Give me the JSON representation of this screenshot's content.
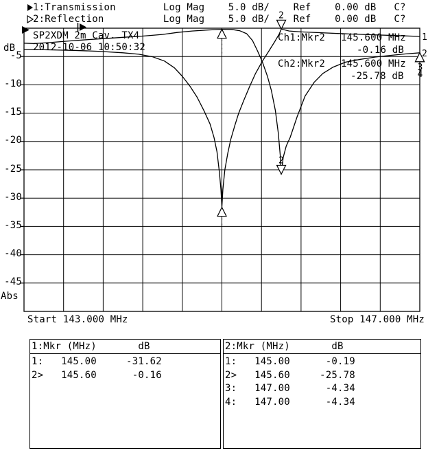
{
  "colors": {
    "foreground": "#000000",
    "background": "#ffffff"
  },
  "header": {
    "ch1_arrow": "filled-right-triangle",
    "ch2_arrow": "hollow-right-triangle",
    "ch1_line": "1:Transmission        Log Mag    5.0 dB/    Ref    0.00 dB   C?",
    "ch2_line": "2:Reflection          Log Mag    5.0 dB/    Ref    0.00 dB   C?"
  },
  "plot": {
    "title": "SP2XDM 2m Cav. TX4",
    "timestamp": "2012-10-06 10:50:32",
    "y_top_label": "dB",
    "y_bottom_label": "Abs",
    "start_label": "Start 143.000 MHz",
    "stop_label": "Stop 147.000 MHz",
    "readouts": {
      "ch1_label": "Ch1:Mkr2",
      "ch1_freq": "145.600 MHz",
      "ch1_value": "-0.16 dB",
      "ch2_label": "Ch2:Mkr2",
      "ch2_freq": "145.600 MHz",
      "ch2_value": "-25.78 dB"
    }
  },
  "chart_data": {
    "type": "line",
    "title": "SP2XDM 2m Cav. TX4",
    "timestamp": "2012-10-06 10:50:32",
    "x_axis": {
      "min": 143.0,
      "max": 147.0,
      "unit": "MHz",
      "divisions": 10,
      "start_label": "Start 143.000 MHz",
      "stop_label": "Stop 147.000 MHz"
    },
    "y_axis": {
      "min": -50,
      "max": 0,
      "unit": "dB",
      "divisions": 10,
      "scale_per_div": 5.0,
      "ref_level": 0.0,
      "ticks": [
        -5,
        -10,
        -15,
        -20,
        -25,
        -30,
        -35,
        -40,
        -45
      ],
      "top_label": "dB",
      "bottom_label": "Abs"
    },
    "grid": true,
    "series": [
      {
        "name": "Transmission",
        "channel": 1,
        "points": [
          [
            143.0,
            -3.75
          ],
          [
            143.25,
            -3.82
          ],
          [
            143.5,
            -3.92
          ],
          [
            143.75,
            -4.08
          ],
          [
            144.0,
            -4.35
          ],
          [
            144.16,
            -4.6
          ],
          [
            144.3,
            -5.05
          ],
          [
            144.42,
            -5.8
          ],
          [
            144.52,
            -7.0
          ],
          [
            144.6,
            -8.5
          ],
          [
            144.68,
            -10.3
          ],
          [
            144.75,
            -12.2
          ],
          [
            144.82,
            -14.6
          ],
          [
            144.88,
            -16.9
          ],
          [
            144.92,
            -19.3
          ],
          [
            144.95,
            -21.8
          ],
          [
            144.975,
            -25.5
          ],
          [
            144.99,
            -28.5
          ],
          [
            145.0,
            -31.62
          ],
          [
            145.01,
            -28.5
          ],
          [
            145.03,
            -25.0
          ],
          [
            145.06,
            -22.0
          ],
          [
            145.09,
            -19.6
          ],
          [
            145.13,
            -17.2
          ],
          [
            145.17,
            -15.0
          ],
          [
            145.22,
            -12.8
          ],
          [
            145.28,
            -10.3
          ],
          [
            145.34,
            -8.0
          ],
          [
            145.41,
            -5.8
          ],
          [
            145.48,
            -3.9
          ],
          [
            145.54,
            -2.2
          ],
          [
            145.58,
            -1.0
          ],
          [
            145.6,
            -0.16
          ],
          [
            145.68,
            -0.5
          ],
          [
            145.8,
            -0.65
          ],
          [
            146.0,
            -0.8
          ],
          [
            146.25,
            -1.0
          ],
          [
            146.5,
            -1.15
          ],
          [
            146.75,
            -1.3
          ],
          [
            147.0,
            -1.46
          ]
        ]
      },
      {
        "name": "Reflection",
        "channel": 2,
        "points": [
          [
            143.0,
            -2.65
          ],
          [
            143.1,
            -2.72
          ],
          [
            143.25,
            -2.55
          ],
          [
            143.5,
            -2.2
          ],
          [
            143.75,
            -1.9
          ],
          [
            144.0,
            -1.62
          ],
          [
            144.2,
            -1.4
          ],
          [
            144.4,
            -1.1
          ],
          [
            144.55,
            -0.75
          ],
          [
            144.7,
            -0.5
          ],
          [
            144.85,
            -0.33
          ],
          [
            145.0,
            -0.19
          ],
          [
            145.1,
            -0.22
          ],
          [
            145.18,
            -0.45
          ],
          [
            145.25,
            -0.97
          ],
          [
            145.31,
            -2.2
          ],
          [
            145.36,
            -4.0
          ],
          [
            145.41,
            -6.0
          ],
          [
            145.46,
            -8.5
          ],
          [
            145.5,
            -11.0
          ],
          [
            145.54,
            -14.5
          ],
          [
            145.57,
            -18.5
          ],
          [
            145.59,
            -22.5
          ],
          [
            145.6,
            -25.78
          ],
          [
            145.62,
            -22.8
          ],
          [
            145.65,
            -20.8
          ],
          [
            145.69,
            -19.3
          ],
          [
            145.76,
            -15.65
          ],
          [
            145.84,
            -12.0
          ],
          [
            145.93,
            -9.6
          ],
          [
            146.02,
            -8.0
          ],
          [
            146.12,
            -6.9
          ],
          [
            146.25,
            -6.0
          ],
          [
            146.4,
            -5.5
          ],
          [
            146.55,
            -5.1
          ],
          [
            146.7,
            -4.8
          ],
          [
            146.85,
            -4.55
          ],
          [
            147.0,
            -4.34
          ]
        ]
      }
    ],
    "markers": [
      {
        "name": "reflection-marker-1",
        "label": "",
        "f": 145.0,
        "db": -0.19,
        "dir": "up",
        "stem": "dashed",
        "labelpos": "none"
      },
      {
        "name": "transmission-marker-1",
        "label": "",
        "f": 145.0,
        "db": -31.62,
        "dir": "up",
        "stem": "dot",
        "labelpos": "none"
      },
      {
        "name": "transmission-marker-2",
        "label": "2",
        "f": 145.6,
        "db": -0.16,
        "dir": "down",
        "labelpos": "above"
      },
      {
        "name": "reflection-marker-2",
        "label": "2",
        "f": 145.6,
        "db": -25.78,
        "dir": "down",
        "labelpos": "above"
      },
      {
        "name": "marker-3",
        "label": "3",
        "f": 147.0,
        "db": -4.34,
        "dir": "up",
        "labelpos": "below"
      },
      {
        "name": "marker-4",
        "label": "4",
        "f": 147.0,
        "db": -4.34,
        "dir": "up",
        "labelpos": "below2"
      }
    ],
    "trace_end_labels": [
      {
        "label": "1",
        "db": -1.46
      },
      {
        "label": "2",
        "db": -4.34
      }
    ]
  },
  "marker_tables": [
    {
      "header": "1:Mkr (MHz)       dB",
      "rows": [
        "1:   145.00     -31.62",
        "2>   145.60      -0.16"
      ]
    },
    {
      "header": "2:Mkr (MHz)       dB",
      "rows": [
        "1:   145.00      -0.19",
        "2>   145.60     -25.78",
        "3:   147.00      -4.34",
        "4:   147.00      -4.34"
      ]
    }
  ]
}
